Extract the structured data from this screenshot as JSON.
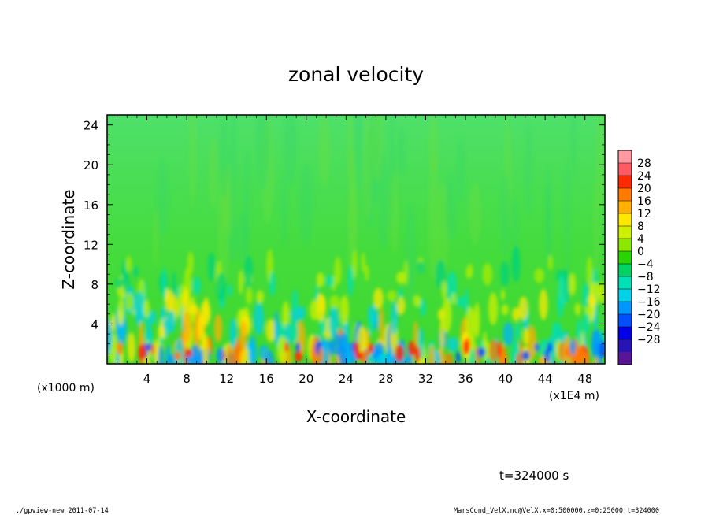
{
  "chart_data": {
    "type": "heatmap",
    "title": "zonal velocity",
    "xlabel": "X-coordinate",
    "ylabel": "Z-coordinate",
    "x_unit_label": "(x1E4 m)",
    "y_unit_label": "(x1000 m)",
    "xlim": [
      0,
      50
    ],
    "ylim": [
      0,
      25
    ],
    "x_ticks": [
      4,
      8,
      12,
      16,
      20,
      24,
      28,
      32,
      36,
      40,
      44,
      48
    ],
    "x_tick_labels": [
      "4",
      "8",
      "12",
      "16",
      "20",
      "24",
      "28",
      "32",
      "36",
      "40",
      "44",
      "48"
    ],
    "y_ticks": [
      4,
      8,
      12,
      16,
      20,
      24
    ],
    "y_tick_labels": [
      "4",
      "8",
      "12",
      "16",
      "20",
      "24"
    ],
    "colorbar_levels": [
      28,
      24,
      20,
      16,
      12,
      8,
      4,
      0,
      -4,
      -8,
      -12,
      -16,
      -20,
      -24,
      -28
    ],
    "colorbar_labels": [
      "28",
      "24",
      "20",
      "16",
      "12",
      "8",
      "4",
      "0",
      "−4",
      "−8",
      "−12",
      "−16",
      "−20",
      "−24",
      "−28"
    ],
    "colorbar_colors": [
      "#ff9aa0",
      "#ff5a64",
      "#ff2a00",
      "#ff7a00",
      "#ffb000",
      "#ffe800",
      "#cdf000",
      "#8ce800",
      "#2ad400",
      "#00d264",
      "#00e0b4",
      "#00d2e8",
      "#0096ff",
      "#0050ff",
      "#0000e6",
      "#2814b4",
      "#5a1496"
    ],
    "annotation_time": "t=324000 s"
  },
  "footer": {
    "left": "./gpview-new   2011-07-14",
    "right": "MarsCond_VelX.nc@VelX,x=0:500000,z=0:25000,t=324000"
  }
}
